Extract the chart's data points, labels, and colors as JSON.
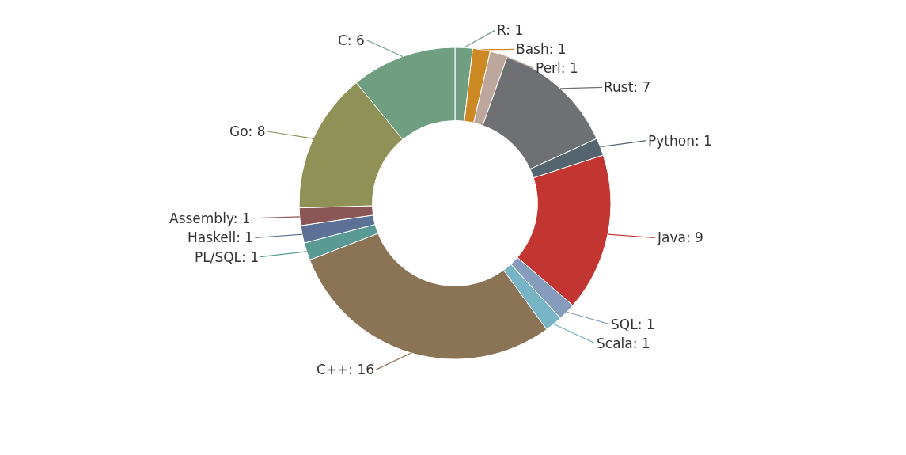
{
  "chart_data": {
    "type": "donut",
    "categories": [
      "R",
      "Bash",
      "Perl",
      "Rust",
      "Python",
      "Java",
      "SQL",
      "Scala",
      "C++",
      "PL/SQL",
      "Haskell",
      "Assembly",
      "Go",
      "C"
    ],
    "values": [
      1,
      1,
      1,
      7,
      1,
      9,
      1,
      1,
      16,
      1,
      1,
      1,
      8,
      6
    ],
    "value_labels": [
      ": 1",
      ": 1",
      ": 1",
      ": 7",
      ": 1",
      ": 9",
      ": 1",
      ": 1",
      ": 16",
      ": 1",
      ": 1",
      ": 1",
      ": 8",
      ": 6"
    ],
    "colors": [
      "#6f9e80",
      "#cc8822",
      "#bda69b",
      "#6e7074",
      "#546570",
      "#c23531",
      "#859cbd",
      "#76b4c6",
      "#8b7355",
      "#5a9a94",
      "#5b7296",
      "#8c5656",
      "#909157",
      "#6f9e80"
    ],
    "legend": false
  }
}
